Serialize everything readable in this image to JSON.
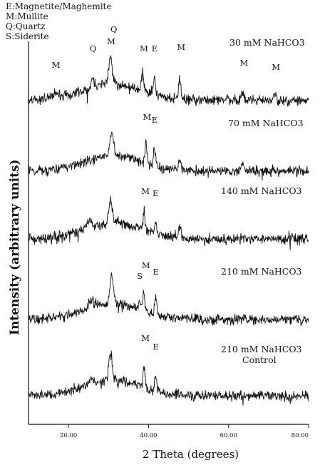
{
  "chart_data": {
    "type": "line",
    "xlabel": "2 Theta (degrees)",
    "ylabel": "Intensity (arbitrary units)",
    "xlim": [
      10,
      80
    ],
    "x_ticks": [
      {
        "value": 20,
        "label": "20.00"
      },
      {
        "value": 40,
        "label": "40.00"
      },
      {
        "value": 60,
        "label": "60.00"
      },
      {
        "value": 80,
        "label": "80.00"
      }
    ],
    "legend": [
      "E:Magnetite/Maghemite",
      "M:Mullite",
      "Q:Quartz",
      "S:Siderite"
    ],
    "grid": false,
    "series": [
      {
        "name": "30 mM NaHCO3",
        "baseline": 0.0
      },
      {
        "name": "70 mM NaHCO3",
        "baseline": 0.0
      },
      {
        "name": "140 mM NaHCO3",
        "baseline": 0.0
      },
      {
        "name": "210 mM NaHCO3",
        "baseline": 0.0
      },
      {
        "name": "210 mM NaHCO3",
        "name_line2": "Control",
        "baseline": 0.0
      }
    ],
    "peak_annotations": [
      {
        "series": 0,
        "labels": [
          {
            "label": "M",
            "two_theta": 16.5
          },
          {
            "label": "Q",
            "two_theta": 26.0
          },
          {
            "label": "M",
            "two_theta": 30.3
          },
          {
            "label": "Q",
            "two_theta": 31.2
          },
          {
            "label": "M",
            "two_theta": 38.5
          },
          {
            "label": "E",
            "two_theta": 41.5
          },
          {
            "label": "M",
            "two_theta": 47.8
          },
          {
            "label": "M",
            "two_theta": 63.5
          },
          {
            "label": "M",
            "two_theta": 71.5
          }
        ]
      },
      {
        "series": 1,
        "labels": [
          {
            "label": "M",
            "two_theta": 39.3
          },
          {
            "label": "E",
            "two_theta": 41.5
          }
        ]
      },
      {
        "series": 2,
        "labels": [
          {
            "label": "M",
            "two_theta": 38.9
          },
          {
            "label": "E",
            "two_theta": 41.7
          }
        ]
      },
      {
        "series": 3,
        "labels": [
          {
            "label": "S",
            "two_theta": 37.8
          },
          {
            "label": "M",
            "two_theta": 39.0
          },
          {
            "label": "E",
            "two_theta": 41.8
          }
        ]
      },
      {
        "series": 4,
        "labels": [
          {
            "label": "M",
            "two_theta": 38.9
          },
          {
            "label": "E",
            "two_theta": 41.8
          }
        ]
      }
    ]
  }
}
